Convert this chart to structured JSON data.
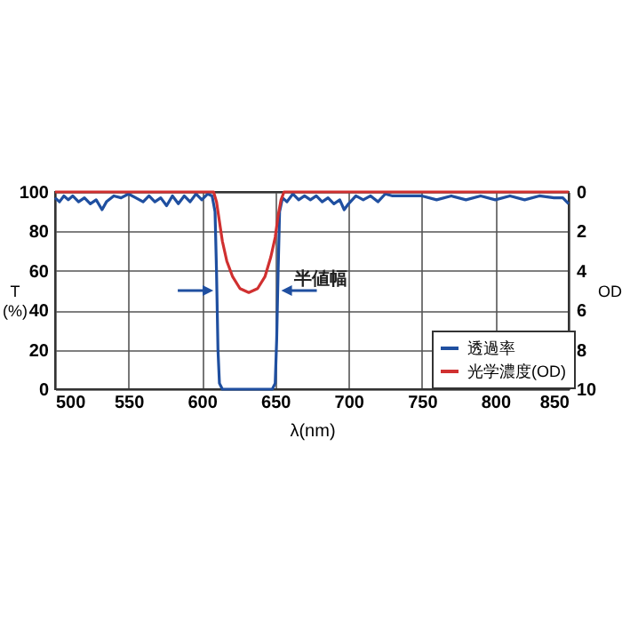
{
  "chart_data": {
    "type": "line",
    "xlabel": "λ(nm)",
    "ylabel": "T\n(%)",
    "y2label": "OD",
    "xlim": [
      500,
      850
    ],
    "xticks": [
      500,
      550,
      600,
      650,
      700,
      750,
      800,
      850
    ],
    "ylim": [
      0,
      100
    ],
    "yticks": [
      0,
      20,
      40,
      60,
      80,
      100
    ],
    "y2lim": [
      10,
      0
    ],
    "y2ticks": [
      0,
      2,
      4,
      6,
      8,
      10
    ],
    "grid": true,
    "legend": "bottom right",
    "marker": "none",
    "annotations": [
      {
        "text": "半値幅",
        "x": 653,
        "y": 56
      }
    ],
    "series": [
      {
        "name": "透過率",
        "color": "#1f4fa0",
        "x": [
          500,
          503,
          506,
          509,
          512,
          516,
          520,
          524,
          528,
          532,
          535,
          540,
          545,
          550,
          555,
          560,
          564,
          568,
          572,
          576,
          580,
          584,
          588,
          592,
          596,
          600,
          604,
          607,
          609,
          610,
          611,
          612,
          614,
          648,
          650,
          651,
          652,
          653,
          655,
          658,
          662,
          666,
          670,
          674,
          678,
          682,
          686,
          690,
          694,
          697,
          700,
          705,
          710,
          715,
          720,
          725,
          730,
          740,
          750,
          760,
          770,
          780,
          790,
          800,
          810,
          820,
          830,
          840,
          846,
          850
        ],
        "values": [
          97,
          95,
          98,
          96,
          98,
          95,
          97,
          94,
          96,
          91,
          95,
          98,
          97,
          99,
          97,
          95,
          98,
          95,
          97,
          93,
          98,
          94,
          98,
          95,
          99,
          96,
          99,
          98,
          90,
          60,
          20,
          3,
          0,
          0,
          3,
          25,
          60,
          90,
          97,
          95,
          99,
          96,
          98,
          96,
          98,
          95,
          97,
          94,
          96,
          91,
          94,
          98,
          96,
          98,
          95,
          99,
          98,
          98,
          98,
          96,
          98,
          96,
          98,
          96,
          98,
          96,
          98,
          97,
          97,
          94
        ]
      },
      {
        "name": "光学濃度(OD)",
        "color": "#d03030",
        "axis": "y2",
        "x": [
          500,
          608,
          610,
          612,
          614,
          617,
          621,
          626,
          632,
          638,
          643,
          647,
          650,
          652,
          654,
          656,
          850
        ],
        "values": [
          0,
          0,
          0.5,
          1.5,
          2.5,
          3.5,
          4.3,
          4.9,
          5.1,
          4.9,
          4.3,
          3.3,
          2.3,
          1.2,
          0.4,
          0,
          0
        ]
      }
    ]
  }
}
